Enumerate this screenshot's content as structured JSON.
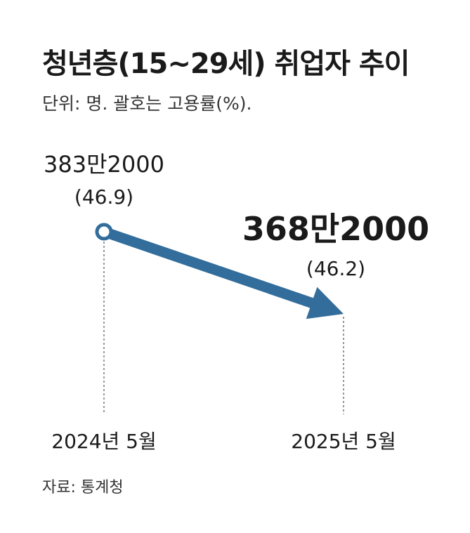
{
  "title": "청년층(15∼29세) 취업자 추이",
  "subtitle": "단위: 명. 괄호는 고용률(%).",
  "source": "자료: 통계청",
  "colors": {
    "arrow": "#326d9b",
    "text": "#1a1a1a",
    "guide": "#555555"
  },
  "chart_data": {
    "type": "line",
    "title": "청년층(15∼29세) 취업자 추이",
    "unit_note": "단위: 명. 괄호는 고용률(%).",
    "categories": [
      "2024년 5월",
      "2025년 5월"
    ],
    "series": [
      {
        "values": [
          3832000,
          3682000
        ],
        "value_labels": [
          "383만2000",
          "368만2000"
        ],
        "rate_labels": [
          "(46.9)",
          "(46.2)"
        ],
        "rates": [
          46.9,
          46.2
        ]
      }
    ],
    "xlabel": "",
    "ylabel": "",
    "grid": false,
    "legend": "none"
  }
}
